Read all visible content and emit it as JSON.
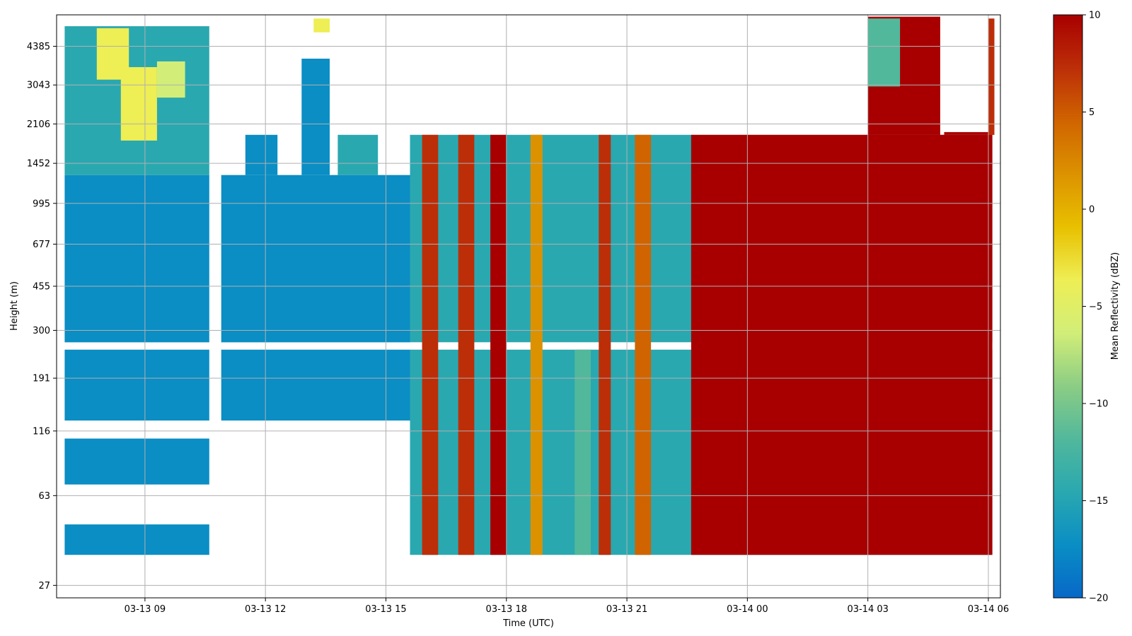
{
  "chart_data": {
    "type": "heatmap",
    "title": "",
    "xlabel": "Time (UTC)",
    "ylabel": "Height (m)",
    "colorbar_label": "Mean Reflectivity (dBZ)",
    "x_tick_labels": [
      "03-13 09",
      "03-13 12",
      "03-13 15",
      "03-13 18",
      "03-13 21",
      "03-14 00",
      "03-14 03",
      "03-14 06"
    ],
    "x_tick_hours": [
      9,
      12,
      15,
      18,
      21,
      24,
      27,
      30
    ],
    "x_range_hours": [
      6.8,
      30.3
    ],
    "y_tick_labels": [
      "27",
      "63",
      "116",
      "191",
      "300",
      "455",
      "677",
      "995",
      "1452",
      "2106",
      "3043",
      "4385"
    ],
    "y_tick_values": [
      27,
      63,
      116,
      191,
      300,
      455,
      677,
      995,
      1452,
      2106,
      3043,
      4385
    ],
    "y_range_m": [
      24,
      5900
    ],
    "y_scale": "log",
    "colorbar_range_dbz": [
      -20,
      10
    ],
    "colorbar_ticks": [
      10,
      5,
      0,
      -5,
      -10,
      -15,
      -20
    ],
    "colorbar_tick_labels": [
      "10",
      "5",
      "0",
      "−5",
      "−10",
      "−15",
      "−20"
    ],
    "colormap": [
      "#0768c8",
      "#0a8ec4",
      "#2aa8b0",
      "#52b89c",
      "#8ccd84",
      "#d2ee78",
      "#eeee55",
      "#e8c000",
      "#dc9200",
      "#d06400",
      "#bc2e08",
      "#a80000"
    ],
    "grid": true,
    "regions": [
      {
        "hours": [
          7.0,
          10.6
        ],
        "heights_m": [
          36,
          48
        ],
        "dbz": -16
      },
      {
        "hours": [
          7.0,
          10.6
        ],
        "heights_m": [
          70,
          108
        ],
        "dbz": -16
      },
      {
        "hours": [
          7.0,
          10.6
        ],
        "heights_m": [
          128,
          250
        ],
        "dbz": -17
      },
      {
        "hours": [
          7.0,
          10.6
        ],
        "heights_m": [
          268,
          1300
        ],
        "dbz": -16
      },
      {
        "hours": [
          7.0,
          10.6
        ],
        "heights_m": [
          1300,
          5300
        ],
        "dbz": -14
      },
      {
        "hours": [
          7.8,
          8.6
        ],
        "heights_m": [
          3200,
          5200
        ],
        "dbz": -4
      },
      {
        "hours": [
          8.4,
          9.3
        ],
        "heights_m": [
          1800,
          3600
        ],
        "dbz": -4
      },
      {
        "hours": [
          9.3,
          10.0
        ],
        "heights_m": [
          2700,
          3800
        ],
        "dbz": -6
      },
      {
        "hours": [
          10.9,
          15.6
        ],
        "heights_m": [
          268,
          1300
        ],
        "dbz": -16
      },
      {
        "hours": [
          10.9,
          15.6
        ],
        "heights_m": [
          128,
          250
        ],
        "dbz": -16
      },
      {
        "hours": [
          11.5,
          12.3
        ],
        "heights_m": [
          1300,
          1900
        ],
        "dbz": -16
      },
      {
        "hours": [
          12.9,
          13.6
        ],
        "heights_m": [
          1300,
          3900
        ],
        "dbz": -16
      },
      {
        "hours": [
          13.2,
          13.6
        ],
        "heights_m": [
          5000,
          5700
        ],
        "dbz": -5
      },
      {
        "hours": [
          13.8,
          14.8
        ],
        "heights_m": [
          1300,
          1900
        ],
        "dbz": -15
      },
      {
        "hours": [
          15.6,
          30.1
        ],
        "heights_m": [
          36,
          250
        ],
        "dbz": -14
      },
      {
        "hours": [
          15.6,
          30.1
        ],
        "heights_m": [
          268,
          1900
        ],
        "dbz": -14
      },
      {
        "hours": [
          15.9,
          16.3
        ],
        "heights_m": [
          36,
          1900
        ],
        "dbz": 8
      },
      {
        "hours": [
          16.8,
          17.2
        ],
        "heights_m": [
          36,
          1900
        ],
        "dbz": 6
      },
      {
        "hours": [
          17.6,
          18.0
        ],
        "heights_m": [
          36,
          1900
        ],
        "dbz": 9
      },
      {
        "hours": [
          18.6,
          18.9
        ],
        "heights_m": [
          36,
          1900
        ],
        "dbz": 3
      },
      {
        "hours": [
          19.7,
          20.1
        ],
        "heights_m": [
          36,
          250
        ],
        "dbz": -12
      },
      {
        "hours": [
          20.3,
          20.6
        ],
        "heights_m": [
          36,
          1900
        ],
        "dbz": 8
      },
      {
        "hours": [
          21.2,
          21.6
        ],
        "heights_m": [
          36,
          1900
        ],
        "dbz": 5
      },
      {
        "hours": [
          22.6,
          30.1
        ],
        "heights_m": [
          36,
          1900
        ],
        "dbz": 9
      },
      {
        "hours": [
          27.0,
          28.8
        ],
        "heights_m": [
          1900,
          5800
        ],
        "dbz": 9
      },
      {
        "hours": [
          27.0,
          27.8
        ],
        "heights_m": [
          3000,
          5700
        ],
        "dbz": -12
      },
      {
        "hours": [
          28.9,
          30.1
        ],
        "heights_m": [
          1900,
          1950
        ],
        "dbz": 9
      },
      {
        "hours": [
          30.0,
          30.15
        ],
        "heights_m": [
          1900,
          5700
        ],
        "dbz": 8
      }
    ]
  }
}
